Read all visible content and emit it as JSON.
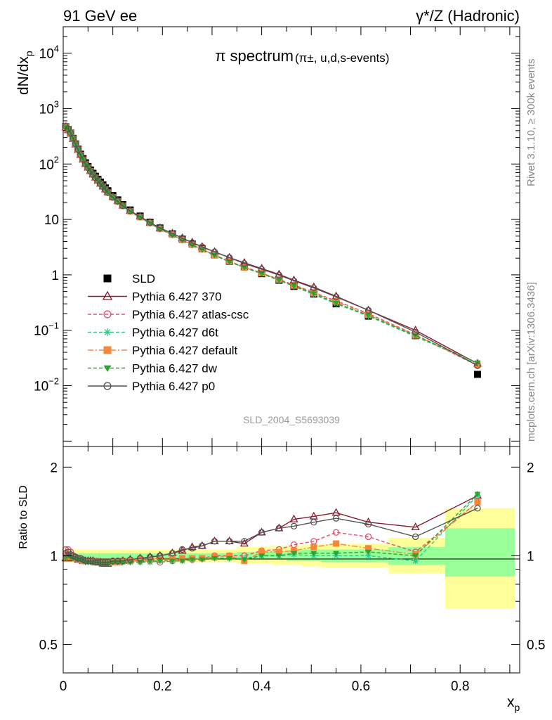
{
  "header": {
    "left": "91 GeV ee",
    "right": "γ*/Z (Hadronic)"
  },
  "side_labels": {
    "rivet": "Rivet 3.1.10, ≥ 300k events",
    "mcplots": "mcplots.cern.ch [arXiv:1306.3436]"
  },
  "colors": {
    "data": "#000000",
    "p370": "#8b1a2e",
    "atlas": "#e8506e",
    "d6t": "#2ec98a",
    "default": "#f4873a",
    "dw": "#2aa62a",
    "p0": "#555555",
    "band_yellow": "#ffff99",
    "band_green": "#99ff99"
  },
  "chart_data": [
    {
      "type": "scatter",
      "panel": "main",
      "title": "π spectrum",
      "title_suffix": "(π±, u,d,s-events)",
      "xlabel": "xp",
      "ylabel": "dN/dxp",
      "xlim": [
        0,
        0.92
      ],
      "ylim": [
        0.0008,
        30000
      ],
      "log_y": true,
      "watermark": "SLD_2004_S5693039",
      "legend_position": "lower-left",
      "x_ticks": [
        "0",
        "0.2",
        "0.4",
        "0.6",
        "0.8"
      ],
      "y_ticks": [
        "10^-2",
        "10^-1",
        "1",
        "10",
        "10^2",
        "10^3",
        "10^4"
      ],
      "x": [
        0.005,
        0.01,
        0.015,
        0.02,
        0.025,
        0.03,
        0.035,
        0.04,
        0.045,
        0.05,
        0.055,
        0.06,
        0.065,
        0.07,
        0.075,
        0.08,
        0.085,
        0.09,
        0.1,
        0.11,
        0.12,
        0.135,
        0.155,
        0.175,
        0.195,
        0.22,
        0.24,
        0.26,
        0.28,
        0.305,
        0.335,
        0.365,
        0.4,
        0.435,
        0.465,
        0.505,
        0.55,
        0.615,
        0.71,
        0.835
      ],
      "series": [
        {
          "name": "SLD",
          "marker": "square",
          "values": [
            470,
            420,
            360,
            290,
            230,
            185,
            150,
            125,
            105,
            90,
            78,
            68,
            60,
            53,
            47,
            42,
            37,
            33,
            27,
            22.5,
            18.5,
            14.8,
            11.5,
            8.9,
            7.0,
            5.5,
            4.4,
            3.6,
            2.95,
            2.3,
            1.75,
            1.4,
            1.05,
            0.8,
            0.62,
            0.45,
            0.3,
            0.18,
            0.08,
            0.016
          ]
        },
        {
          "name": "Pythia 6.427 370",
          "marker": "triangle-open",
          "line": "solid",
          "values": [
            460,
            410,
            355,
            285,
            225,
            180,
            145,
            120,
            100,
            86,
            75,
            65,
            57,
            50,
            44.5,
            39.5,
            35,
            31,
            25.5,
            21.5,
            17.8,
            14.3,
            11.3,
            8.8,
            7.0,
            5.6,
            4.6,
            3.85,
            3.2,
            2.6,
            2.05,
            1.65,
            1.3,
            1.02,
            0.8,
            0.6,
            0.41,
            0.23,
            0.1,
            0.025
          ]
        },
        {
          "name": "Pythia 6.427 atlas-csc",
          "marker": "circle-open",
          "line": "dashed",
          "values": [
            490,
            430,
            370,
            295,
            232,
            185,
            148,
            122,
            101,
            87,
            75,
            65,
            57,
            50.5,
            44.5,
            39.5,
            35,
            31,
            25.5,
            21.5,
            17.8,
            14.2,
            11.0,
            8.6,
            6.7,
            5.3,
            4.3,
            3.5,
            2.9,
            2.3,
            1.75,
            1.4,
            1.08,
            0.83,
            0.66,
            0.48,
            0.34,
            0.2,
            0.083,
            0.023
          ]
        },
        {
          "name": "Pythia 6.427 d6t",
          "marker": "star",
          "line": "dashed",
          "values": [
            470,
            425,
            360,
            288,
            228,
            182,
            146,
            121,
            100,
            86,
            74,
            64.5,
            56.5,
            50,
            44,
            39,
            34.5,
            30.5,
            25,
            21,
            17.5,
            14.0,
            10.9,
            8.5,
            6.7,
            5.2,
            4.2,
            3.45,
            2.85,
            2.25,
            1.72,
            1.35,
            1.05,
            0.8,
            0.62,
            0.44,
            0.3,
            0.18,
            0.077,
            0.025
          ]
        },
        {
          "name": "Pythia 6.427 default",
          "marker": "square-filled",
          "line": "dashdot",
          "values": [
            468,
            422,
            358,
            287,
            227,
            181,
            146,
            120,
            100,
            86,
            74,
            64.5,
            56.5,
            50,
            44,
            39,
            34.5,
            30.5,
            25,
            21,
            17.5,
            14.0,
            11.0,
            8.6,
            6.8,
            5.3,
            4.25,
            3.5,
            2.9,
            2.28,
            1.75,
            1.35,
            1.07,
            0.82,
            0.64,
            0.47,
            0.33,
            0.19,
            0.081,
            0.024
          ]
        },
        {
          "name": "Pythia 6.427 dw",
          "marker": "triangle-down",
          "line": "dashed",
          "values": [
            465,
            418,
            356,
            285,
            226,
            180,
            145,
            120,
            99,
            85,
            73.5,
            64,
            56,
            49.5,
            43.5,
            38.5,
            34,
            30,
            24.7,
            20.8,
            17.3,
            13.9,
            10.8,
            8.5,
            6.7,
            5.2,
            4.2,
            3.45,
            2.85,
            2.25,
            1.72,
            1.36,
            1.05,
            0.8,
            0.63,
            0.46,
            0.31,
            0.185,
            0.08,
            0.026
          ]
        },
        {
          "name": "Pythia 6.427 p0",
          "marker": "circle-open",
          "line": "solid",
          "values": [
            478,
            428,
            365,
            292,
            230,
            183,
            147,
            121,
            100,
            86,
            74,
            64.5,
            56.5,
            50,
            44,
            39,
            34.5,
            30.5,
            25,
            21.2,
            17.6,
            14.2,
            11.2,
            8.8,
            7.0,
            5.6,
            4.6,
            3.8,
            3.2,
            2.6,
            2.05,
            1.6,
            1.26,
            0.99,
            0.78,
            0.58,
            0.4,
            0.23,
            0.093,
            0.023
          ]
        }
      ]
    },
    {
      "type": "line",
      "panel": "ratio",
      "ylabel": "Ratio to SLD",
      "xlabel": "xp",
      "xlim": [
        0,
        0.92
      ],
      "ylim": [
        0.4,
        2.35
      ],
      "log_y": true,
      "y_ticks": [
        "0.5",
        "1",
        "2"
      ],
      "x_ticks": [
        "0",
        "0.2",
        "0.4",
        "0.6",
        "0.8"
      ],
      "bands": {
        "edges": [
          0,
          0.2,
          0.25,
          0.3,
          0.35,
          0.38,
          0.42,
          0.45,
          0.48,
          0.52,
          0.58,
          0.655,
          0.77,
          0.91
        ],
        "yellow": [
          [
            0.95,
            1.05
          ],
          [
            0.95,
            1.05
          ],
          [
            0.95,
            1.05
          ],
          [
            0.95,
            1.05
          ],
          [
            0.94,
            1.07
          ],
          [
            0.94,
            1.07
          ],
          [
            0.93,
            1.08
          ],
          [
            0.93,
            1.08
          ],
          [
            0.92,
            1.09
          ],
          [
            0.91,
            1.1
          ],
          [
            0.91,
            1.1
          ],
          [
            0.87,
            1.15
          ],
          [
            0.66,
            1.45
          ]
        ],
        "green": [
          [
            0.98,
            1.02
          ],
          [
            0.98,
            1.02
          ],
          [
            0.98,
            1.02
          ],
          [
            0.98,
            1.02
          ],
          [
            0.97,
            1.03
          ],
          [
            0.97,
            1.03
          ],
          [
            0.97,
            1.04
          ],
          [
            0.96,
            1.04
          ],
          [
            0.96,
            1.05
          ],
          [
            0.95,
            1.05
          ],
          [
            0.95,
            1.05
          ],
          [
            0.93,
            1.07
          ],
          [
            0.85,
            1.24
          ]
        ]
      },
      "x": [
        0.005,
        0.01,
        0.015,
        0.02,
        0.025,
        0.03,
        0.035,
        0.04,
        0.045,
        0.05,
        0.055,
        0.06,
        0.065,
        0.07,
        0.075,
        0.08,
        0.085,
        0.09,
        0.1,
        0.11,
        0.12,
        0.135,
        0.155,
        0.175,
        0.195,
        0.22,
        0.24,
        0.26,
        0.28,
        0.305,
        0.335,
        0.365,
        0.4,
        0.435,
        0.465,
        0.505,
        0.55,
        0.615,
        0.71,
        0.835
      ],
      "series": [
        {
          "name": "Pythia 6.427 370",
          "values": [
            0.98,
            0.98,
            0.99,
            0.98,
            0.98,
            0.97,
            0.97,
            0.96,
            0.96,
            0.96,
            0.96,
            0.96,
            0.95,
            0.95,
            0.95,
            0.94,
            0.94,
            0.94,
            0.95,
            0.95,
            0.96,
            0.97,
            0.98,
            0.99,
            1.0,
            1.02,
            1.04,
            1.07,
            1.08,
            1.12,
            1.12,
            1.1,
            1.2,
            1.24,
            1.33,
            1.36,
            1.4,
            1.3,
            1.25,
            1.6
          ]
        },
        {
          "name": "Pythia 6.427 atlas-csc",
          "values": [
            1.05,
            1.05,
            1.03,
            1.0,
            0.99,
            0.97,
            0.97,
            0.96,
            0.96,
            0.96,
            0.96,
            0.96,
            0.96,
            0.95,
            0.95,
            0.95,
            0.95,
            0.95,
            0.96,
            0.96,
            0.96,
            0.96,
            0.96,
            0.96,
            0.95,
            0.96,
            0.97,
            0.97,
            0.98,
            1.0,
            1.0,
            1.0,
            1.04,
            1.05,
            1.09,
            1.12,
            1.2,
            1.16,
            1.03,
            1.52
          ]
        },
        {
          "name": "Pythia 6.427 d6t",
          "values": [
            1.0,
            1.01,
            1.0,
            0.99,
            0.99,
            0.98,
            0.97,
            0.97,
            0.96,
            0.96,
            0.96,
            0.96,
            0.95,
            0.95,
            0.95,
            0.95,
            0.95,
            0.95,
            0.95,
            0.95,
            0.95,
            0.95,
            0.95,
            0.95,
            0.96,
            0.96,
            0.96,
            0.97,
            0.98,
            0.98,
            0.98,
            0.98,
            1.0,
            1.0,
            1.01,
            1.0,
            1.0,
            1.0,
            0.96,
            1.6
          ]
        },
        {
          "name": "Pythia 6.427 default",
          "values": [
            1.0,
            1.0,
            0.99,
            0.99,
            0.98,
            0.98,
            0.97,
            0.96,
            0.96,
            0.96,
            0.96,
            0.96,
            0.95,
            0.95,
            0.95,
            0.95,
            0.95,
            0.95,
            0.95,
            0.95,
            0.96,
            0.96,
            0.97,
            0.97,
            0.98,
            0.98,
            0.98,
            0.98,
            0.98,
            0.99,
            1.0,
            0.96,
            1.03,
            1.03,
            1.04,
            1.07,
            1.1,
            1.06,
            1.01,
            1.52
          ]
        },
        {
          "name": "Pythia 6.427 dw",
          "values": [
            0.99,
            1.0,
            0.99,
            0.98,
            0.98,
            0.97,
            0.97,
            0.96,
            0.95,
            0.95,
            0.95,
            0.95,
            0.95,
            0.95,
            0.94,
            0.94,
            0.94,
            0.94,
            0.95,
            0.95,
            0.95,
            0.95,
            0.95,
            0.96,
            0.96,
            0.96,
            0.96,
            0.97,
            0.97,
            0.98,
            0.98,
            0.97,
            1.0,
            1.0,
            1.02,
            1.02,
            1.02,
            1.03,
            1.0,
            1.62
          ]
        },
        {
          "name": "Pythia 6.427 p0",
          "values": [
            1.02,
            1.03,
            1.01,
            1.0,
            0.99,
            0.98,
            0.98,
            0.97,
            0.96,
            0.96,
            0.96,
            0.96,
            0.95,
            0.95,
            0.95,
            0.95,
            0.95,
            0.95,
            0.96,
            0.96,
            0.96,
            0.97,
            0.98,
            0.99,
            1.0,
            1.02,
            1.05,
            1.06,
            1.08,
            1.12,
            1.12,
            1.12,
            1.2,
            1.24,
            1.26,
            1.3,
            1.34,
            1.28,
            1.16,
            1.45
          ]
        }
      ]
    }
  ]
}
